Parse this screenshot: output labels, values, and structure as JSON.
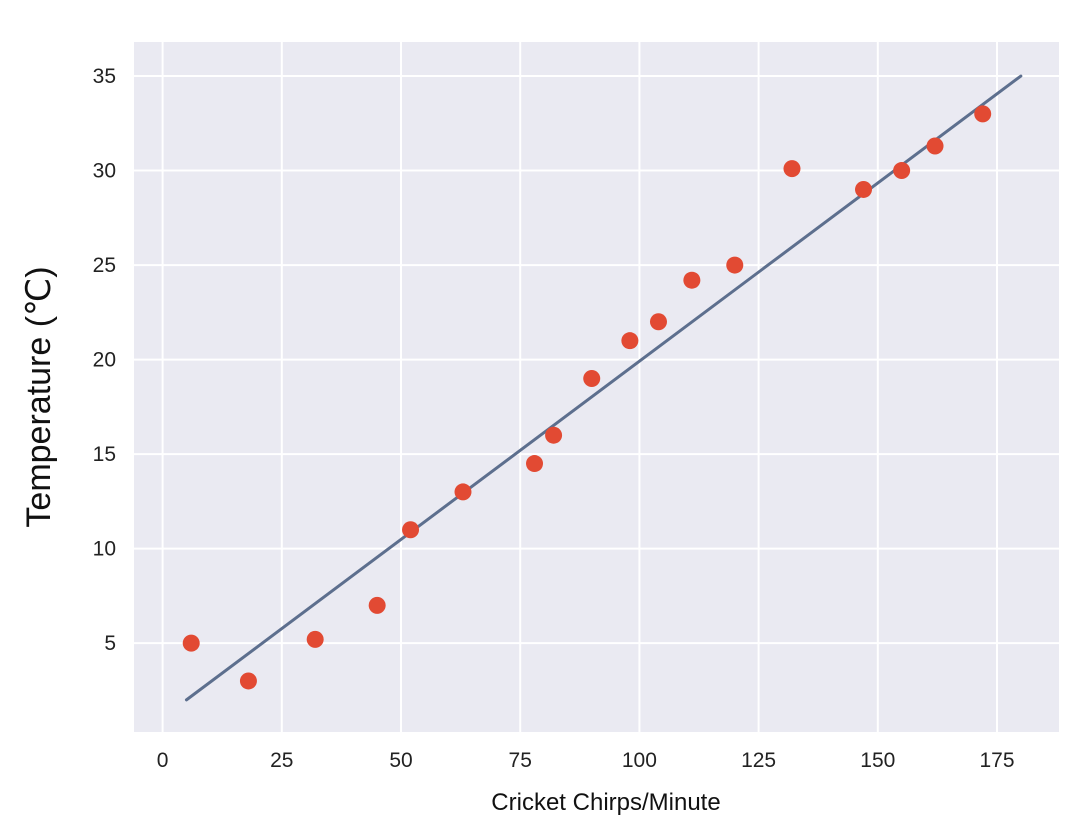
{
  "chart_data": {
    "type": "scatter",
    "title": "",
    "xlabel": "Cricket Chirps/Minute",
    "ylabel": "Temperature (℃)",
    "xlim": [
      -6,
      188
    ],
    "ylim": [
      0.3,
      36.8
    ],
    "xticks": [
      0,
      25,
      50,
      75,
      100,
      125,
      150,
      175
    ],
    "yticks": [
      5,
      10,
      15,
      20,
      25,
      30,
      35
    ],
    "grid": true,
    "colors": {
      "background": "#eaeaf2",
      "grid": "#ffffff",
      "points": "#e24a33",
      "line": "#5d6f8e"
    },
    "series": [
      {
        "type": "scatter",
        "points": [
          {
            "x": 6,
            "y": 5
          },
          {
            "x": 18,
            "y": 3
          },
          {
            "x": 32,
            "y": 5.2
          },
          {
            "x": 45,
            "y": 7
          },
          {
            "x": 52,
            "y": 11
          },
          {
            "x": 63,
            "y": 13
          },
          {
            "x": 78,
            "y": 14.5
          },
          {
            "x": 82,
            "y": 16
          },
          {
            "x": 90,
            "y": 19
          },
          {
            "x": 98,
            "y": 21
          },
          {
            "x": 104,
            "y": 22
          },
          {
            "x": 111,
            "y": 24.2
          },
          {
            "x": 120,
            "y": 25
          },
          {
            "x": 132,
            "y": 30.1
          },
          {
            "x": 147,
            "y": 29
          },
          {
            "x": 155,
            "y": 30
          },
          {
            "x": 162,
            "y": 31.3
          },
          {
            "x": 172,
            "y": 33
          }
        ]
      },
      {
        "type": "line",
        "points": [
          {
            "x": 5,
            "y": 2
          },
          {
            "x": 180,
            "y": 35
          }
        ]
      }
    ]
  }
}
